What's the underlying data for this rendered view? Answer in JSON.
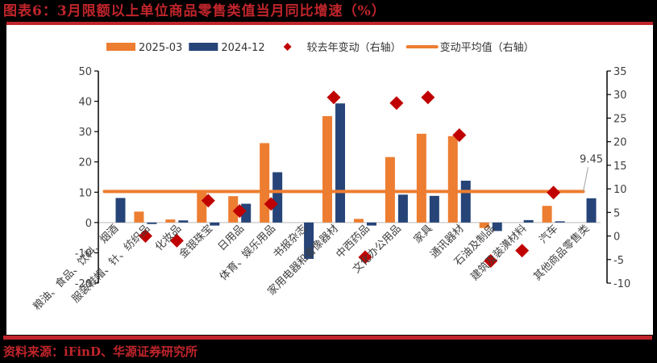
{
  "title": "图表6：3月限额以上单位商品零售类值当月同比增速（%）",
  "source": "资料来源：iFinD、华源证券研究所",
  "colors": {
    "series_2025_03": "#ed7d31",
    "series_2024_12": "#264478",
    "diamond": "#c00000",
    "avg_line": "#ed7d31",
    "brand_red": "#c0252b"
  },
  "legend": [
    {
      "label": "2025-03",
      "type": "bar",
      "color": "#ed7d31"
    },
    {
      "label": "2024-12",
      "type": "bar",
      "color": "#264478"
    },
    {
      "label": "较去年变动（右轴）",
      "type": "diamond",
      "color": "#c00000"
    },
    {
      "label": "变动平均值（右轴）",
      "type": "line",
      "color": "#ed7d31"
    }
  ],
  "chart_data": {
    "type": "bar",
    "title": "图表6：3月限额以上单位商品零售类值当月同比增速（%）",
    "xlabel": "",
    "ylabel": "",
    "ylim": [
      -20,
      50
    ],
    "y_ticks": [
      -20,
      -10,
      0,
      10,
      20,
      30,
      40,
      50
    ],
    "y2lim": [
      -10,
      35
    ],
    "y2_ticks": [
      -10,
      -5,
      0,
      5,
      10,
      15,
      20,
      25,
      30,
      35
    ],
    "legend_position": "top",
    "grid": false,
    "categories": [
      "粮油、食品、饮料、烟酒",
      "服装鞋帽、针、纺织品",
      "化妆品",
      "金银珠宝",
      "日用品",
      "体育、娱乐用品",
      "书报杂志",
      "家用电器和音像器材",
      "中西药品",
      "文化办公用品",
      "家具",
      "通讯器材",
      "石油及制品",
      "建筑及装潢材料",
      "汽车",
      "其他商品零售类"
    ],
    "series": [
      {
        "name": "2025-03",
        "type": "bar",
        "axis": "left",
        "values": [
          null,
          3.6,
          1.0,
          10.0,
          8.7,
          26.2,
          null,
          35.1,
          1.2,
          21.6,
          29.3,
          28.5,
          -1.8,
          null,
          5.5,
          null
        ]
      },
      {
        "name": "2024-12",
        "type": "bar",
        "axis": "left",
        "values": [
          8.1,
          -0.5,
          0.7,
          -1.0,
          6.2,
          16.6,
          -12.0,
          39.3,
          -1.0,
          9.2,
          8.8,
          13.8,
          -2.8,
          0.8,
          0.4,
          8.0
        ]
      },
      {
        "name": "较去年变动（右轴）",
        "type": "scatter",
        "axis": "right",
        "values": [
          null,
          0.0,
          -1.0,
          7.5,
          5.3,
          6.8,
          null,
          29.4,
          -4.5,
          28.2,
          29.4,
          21.4,
          -5.3,
          -3.1,
          9.2,
          null
        ]
      },
      {
        "name": "变动平均值（右轴）",
        "type": "line",
        "axis": "right",
        "values": [
          9.45,
          9.45,
          9.45,
          9.45,
          9.45,
          9.45,
          9.45,
          9.45,
          9.45,
          9.45,
          9.45,
          9.45,
          9.45,
          9.45,
          9.45,
          9.45
        ]
      }
    ],
    "annotations": [
      {
        "text": "9.45",
        "target": "变动平均值（右轴）"
      }
    ]
  }
}
